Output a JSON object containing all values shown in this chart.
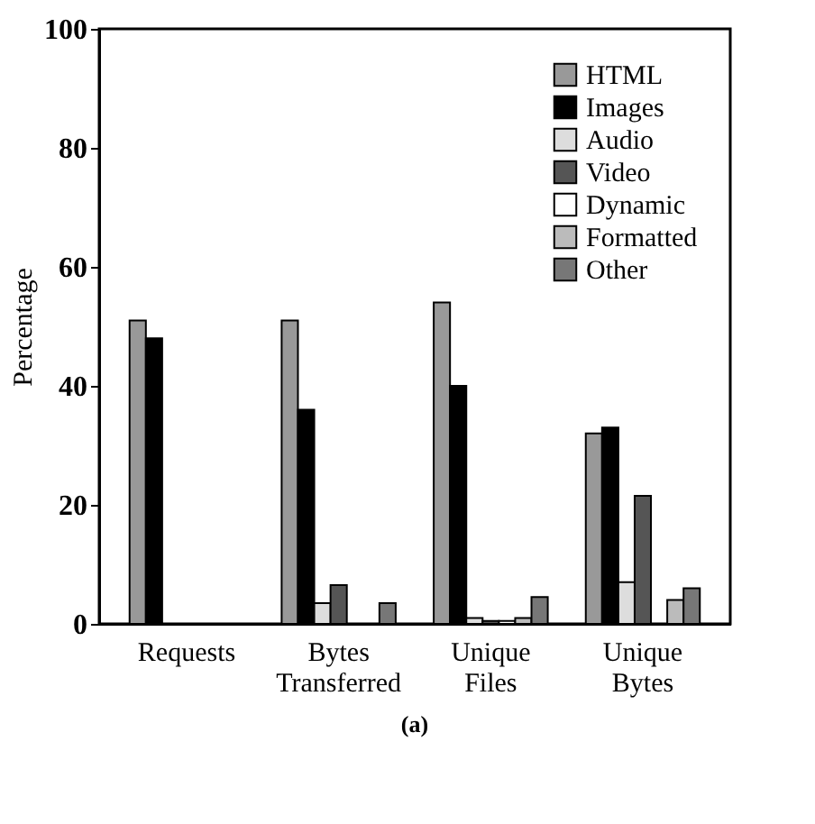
{
  "chart_data": {
    "type": "bar",
    "ylabel": "Percentage",
    "annotations": [
      "(a)"
    ],
    "categories": [
      "Requests",
      "Bytes Transferred",
      "Unique Files",
      "Unique Bytes"
    ],
    "series": [
      {
        "name": "HTML",
        "color": "#999999",
        "values": [
          51,
          51,
          54,
          32
        ]
      },
      {
        "name": "Images",
        "color": "#000000",
        "values": [
          48,
          36,
          40,
          33
        ]
      },
      {
        "name": "Audio",
        "color": "#dddddd",
        "values": [
          null,
          3.5,
          1,
          7
        ]
      },
      {
        "name": "Video",
        "color": "#555555",
        "values": [
          null,
          6.5,
          0.5,
          21.5
        ]
      },
      {
        "name": "Dynamic",
        "color": "#ffffff",
        "values": [
          null,
          null,
          0.5,
          null
        ]
      },
      {
        "name": "Formatted",
        "color": "#bbbbbb",
        "values": [
          null,
          null,
          1,
          4
        ]
      },
      {
        "name": "Other",
        "color": "#777777",
        "values": [
          null,
          3.5,
          4.5,
          6
        ]
      }
    ],
    "ylim": [
      0,
      100
    ],
    "yticks": [
      0,
      20,
      40,
      60,
      80,
      100
    ],
    "grid": false,
    "legend": "top right"
  }
}
